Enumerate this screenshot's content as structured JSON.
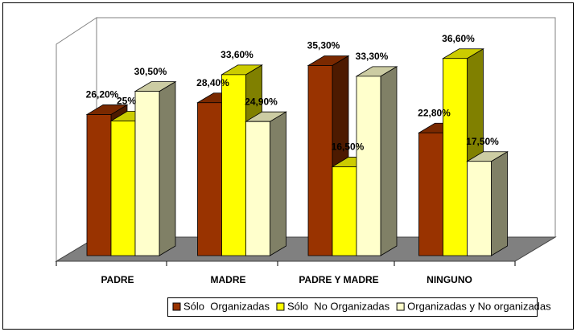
{
  "chart_data": {
    "type": "bar3d",
    "categories": [
      "PADRE",
      "MADRE",
      "PADRE Y MADRE",
      "NINGUNO"
    ],
    "series": [
      {
        "name": "Sólo  Organizadas",
        "color": "#993300",
        "values": [
          26.2,
          28.4,
          35.3,
          22.8
        ],
        "value_labels": [
          "26,20%",
          "28,40%",
          "35,30%",
          "22,80%"
        ]
      },
      {
        "name": "Sólo  No Organizadas",
        "color": "#ffff00",
        "values": [
          25,
          33.6,
          16.5,
          36.6
        ],
        "value_labels": [
          "25%",
          "33,60%",
          "16,50%",
          "36,60%"
        ]
      },
      {
        "name": "Organizadas y No organizadas",
        "color": "#ffffcc",
        "values": [
          30.5,
          24.9,
          33.3,
          17.5
        ],
        "value_labels": [
          "30,50%",
          "24,90%",
          "33,30%",
          "17,50%"
        ]
      }
    ],
    "legend": "bottom"
  }
}
